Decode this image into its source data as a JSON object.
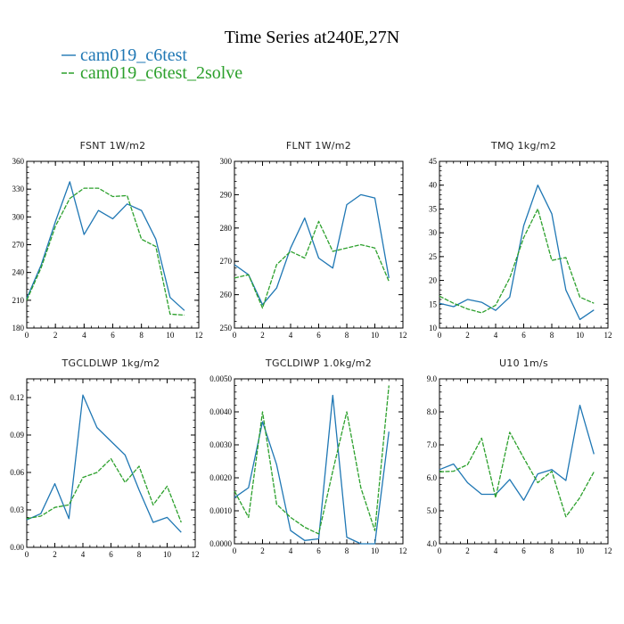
{
  "figure": {
    "title": "Time Series at240E,27N"
  },
  "colors": {
    "series1": "#1f77b4",
    "series2": "#2ca02c"
  },
  "legend": [
    {
      "label": "cam019_c6test",
      "color_key": "series1",
      "dashed": false
    },
    {
      "label": "cam019_c6test_2solve",
      "color_key": "series2",
      "dashed": true
    }
  ],
  "chart_data": [
    {
      "type": "line",
      "title": "FSNT   1W/m2",
      "x": [
        0,
        1,
        2,
        3,
        4,
        5,
        6,
        7,
        8,
        9,
        10,
        11
      ],
      "xlim": [
        0,
        12
      ],
      "xticks": [
        "0",
        "2",
        "4",
        "6",
        "8",
        "10",
        "12"
      ],
      "ylim": [
        180,
        360
      ],
      "yticks": [
        "180",
        "210",
        "240",
        "270",
        "300",
        "330",
        "360"
      ],
      "series": [
        {
          "name": "cam019_c6test",
          "values": [
            212,
            248,
            295,
            338,
            281,
            307,
            298,
            314,
            307,
            276,
            213,
            199
          ]
        },
        {
          "name": "cam019_c6test_2solve",
          "values": [
            210,
            245,
            290,
            320,
            331,
            331,
            322,
            323,
            276,
            268,
            195,
            194
          ]
        }
      ]
    },
    {
      "type": "line",
      "title": "FLNT   1W/m2",
      "x": [
        0,
        1,
        2,
        3,
        4,
        5,
        6,
        7,
        8,
        9,
        10,
        11
      ],
      "xlim": [
        0,
        12
      ],
      "xticks": [
        "0",
        "2",
        "4",
        "6",
        "8",
        "10",
        "12"
      ],
      "ylim": [
        250,
        300
      ],
      "yticks": [
        "250",
        "260",
        "270",
        "280",
        "290",
        "300"
      ],
      "series": [
        {
          "name": "cam019_c6test",
          "values": [
            269,
            266,
            257,
            262,
            274,
            283,
            271,
            268,
            287,
            290,
            289,
            265
          ]
        },
        {
          "name": "cam019_c6test_2solve",
          "values": [
            265,
            266,
            256,
            269,
            273,
            271,
            282,
            273,
            274,
            275,
            274,
            264
          ]
        }
      ]
    },
    {
      "type": "line",
      "title": "TMQ   1kg/m2",
      "x": [
        0,
        1,
        2,
        3,
        4,
        5,
        6,
        7,
        8,
        9,
        10,
        11
      ],
      "xlim": [
        0,
        12
      ],
      "xticks": [
        "0",
        "2",
        "4",
        "6",
        "8",
        "10",
        "12"
      ],
      "ylim": [
        10,
        45
      ],
      "yticks": [
        "10",
        "15",
        "20",
        "25",
        "30",
        "35",
        "40",
        "45"
      ],
      "series": [
        {
          "name": "cam019_c6test",
          "values": [
            15.2,
            14.5,
            16.0,
            15.4,
            13.7,
            16.5,
            31.5,
            40.0,
            34.0,
            18.0,
            11.8,
            13.8
          ]
        },
        {
          "name": "cam019_c6test_2solve",
          "values": [
            16.7,
            15.2,
            14.0,
            13.2,
            14.8,
            20.5,
            29.0,
            35.0,
            24.2,
            24.8,
            16.5,
            15.2
          ]
        }
      ]
    },
    {
      "type": "line",
      "title": "TGCLDLWP   1kg/m2",
      "x": [
        0,
        1,
        2,
        3,
        4,
        5,
        6,
        7,
        8,
        9,
        10,
        11
      ],
      "xlim": [
        0,
        12
      ],
      "xticks": [
        "0",
        "2",
        "4",
        "6",
        "8",
        "10",
        "12"
      ],
      "ylim": [
        0,
        0.135
      ],
      "yticks": [
        "0.00",
        "0.03",
        "0.06",
        "0.09",
        "0.12"
      ],
      "ytick_values": [
        0,
        0.03,
        0.06,
        0.09,
        0.12
      ],
      "series": [
        {
          "name": "cam019_c6test",
          "values": [
            0.022,
            0.027,
            0.051,
            0.023,
            0.122,
            0.096,
            0.085,
            0.074,
            0.046,
            0.02,
            0.024,
            0.012
          ]
        },
        {
          "name": "cam019_c6test_2solve",
          "values": [
            0.023,
            0.025,
            0.032,
            0.034,
            0.056,
            0.06,
            0.071,
            0.052,
            0.065,
            0.034,
            0.049,
            0.02
          ]
        }
      ]
    },
    {
      "type": "line",
      "title": "TGCLDIWP   1.0kg/m2",
      "x": [
        0,
        1,
        2,
        3,
        4,
        5,
        6,
        7,
        8,
        9,
        10,
        11
      ],
      "xlim": [
        0,
        12
      ],
      "xticks": [
        "0",
        "2",
        "4",
        "6",
        "8",
        "10",
        "12"
      ],
      "ylim": [
        0,
        0.005
      ],
      "yticks": [
        "0.0000",
        "0.0010",
        "0.0020",
        "0.0030",
        "0.0040",
        "0.0050"
      ],
      "series": [
        {
          "name": "cam019_c6test",
          "values": [
            0.0014,
            0.0017,
            0.0037,
            0.0024,
            0.0004,
            0.0001,
            0.00015,
            0.0045,
            0.0002,
            0.0,
            0.0,
            0.0034
          ]
        },
        {
          "name": "cam019_c6test_2solve",
          "values": [
            0.0016,
            0.0008,
            0.004,
            0.0012,
            0.0008,
            0.0005,
            0.0003,
            0.0022,
            0.004,
            0.0017,
            0.0004,
            0.0048
          ]
        }
      ]
    },
    {
      "type": "line",
      "title": "U10   1m/s",
      "x": [
        0,
        1,
        2,
        3,
        4,
        5,
        6,
        7,
        8,
        9,
        10,
        11
      ],
      "xlim": [
        0,
        12
      ],
      "xticks": [
        "0",
        "2",
        "4",
        "6",
        "8",
        "10",
        "12"
      ],
      "ylim": [
        4,
        9
      ],
      "yticks": [
        "4.0",
        "5.0",
        "6.0",
        "7.0",
        "8.0",
        "9.0"
      ],
      "series": [
        {
          "name": "cam019_c6test",
          "values": [
            6.25,
            6.42,
            5.85,
            5.5,
            5.5,
            5.95,
            5.32,
            6.12,
            6.25,
            5.92,
            8.2,
            6.72
          ]
        },
        {
          "name": "cam019_c6test_2solve",
          "values": [
            6.18,
            6.2,
            6.4,
            7.2,
            5.4,
            7.38,
            6.6,
            5.85,
            6.2,
            4.82,
            5.4,
            6.18
          ]
        }
      ]
    }
  ]
}
